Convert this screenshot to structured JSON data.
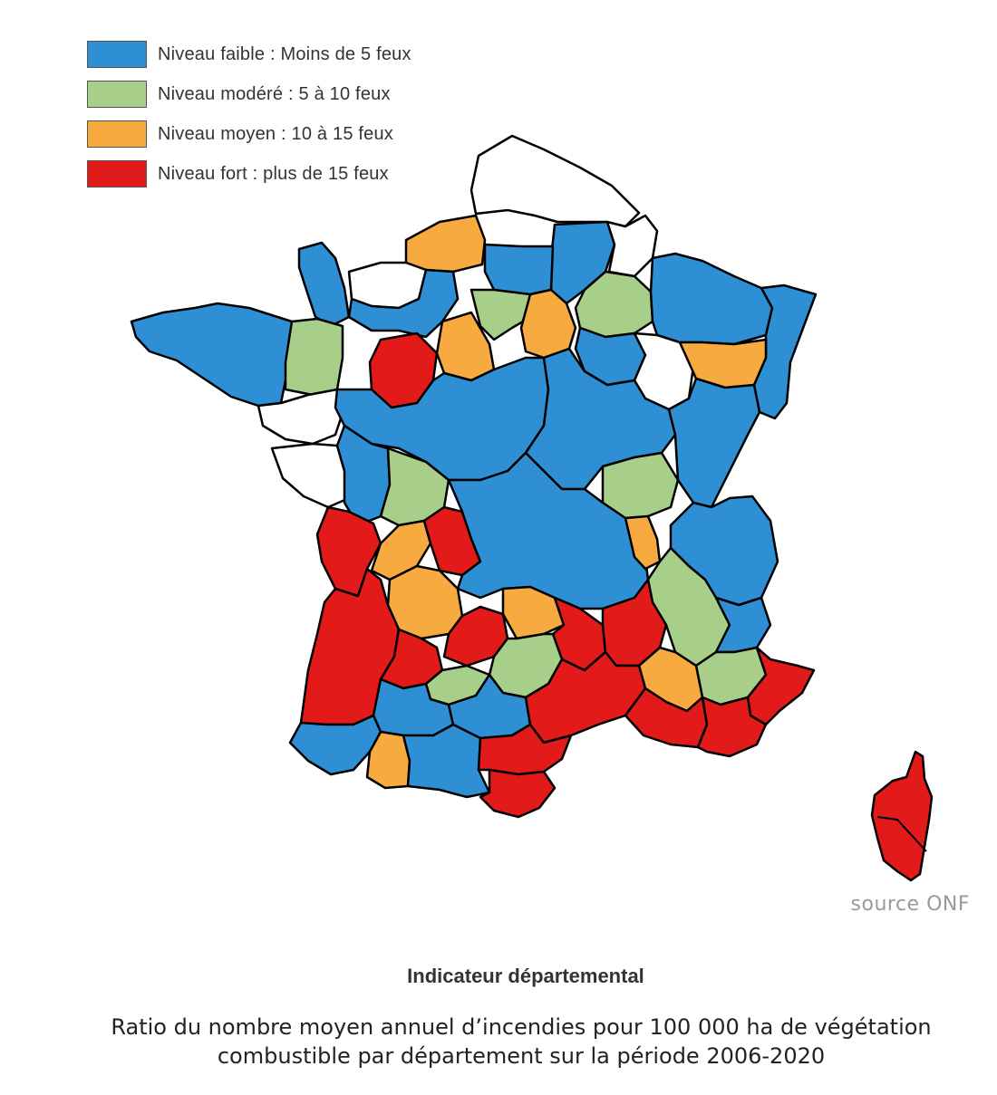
{
  "colors": {
    "faible": "#2f8fd4",
    "modere": "#a8cf8a",
    "moyen": "#f6aa3f",
    "fort": "#e31a1a",
    "nodata": "#ffffff"
  },
  "legend": [
    {
      "key": "faible",
      "label": "Niveau faible : Moins de 5 feux"
    },
    {
      "key": "modere",
      "label": "Niveau modéré : 5 à 10 feux"
    },
    {
      "key": "moyen",
      "label": "Niveau moyen : 10 à 15 feux"
    },
    {
      "key": "fort",
      "label": "Niveau fort : plus de 15 feux"
    }
  ],
  "map": {
    "regions": [
      {
        "name": "nord-pas-de-calais",
        "level": "nodata"
      },
      {
        "name": "somme",
        "level": "moyen"
      },
      {
        "name": "aisne",
        "level": "faible"
      },
      {
        "name": "ardennes",
        "level": "nodata"
      },
      {
        "name": "oise",
        "level": "faible"
      },
      {
        "name": "seine-maritime",
        "level": "nodata"
      },
      {
        "name": "manche",
        "level": "faible"
      },
      {
        "name": "calvados-orne",
        "level": "faible"
      },
      {
        "name": "marne",
        "level": "modere"
      },
      {
        "name": "lorraine",
        "level": "faible"
      },
      {
        "name": "alsace",
        "level": "faible"
      },
      {
        "name": "bretagne",
        "level": "faible"
      },
      {
        "name": "mayenne",
        "level": "modere"
      },
      {
        "name": "sarthe",
        "level": "fort"
      },
      {
        "name": "eure-et-loir",
        "level": "moyen"
      },
      {
        "name": "ile-de-france",
        "level": "modere"
      },
      {
        "name": "seine-et-marne",
        "level": "moyen"
      },
      {
        "name": "aube",
        "level": "faible"
      },
      {
        "name": "haute-marne",
        "level": "nodata"
      },
      {
        "name": "haute-saone",
        "level": "moyen"
      },
      {
        "name": "loire-atlantique",
        "level": "nodata"
      },
      {
        "name": "vendee",
        "level": "nodata"
      },
      {
        "name": "centre",
        "level": "faible"
      },
      {
        "name": "bourgogne",
        "level": "faible"
      },
      {
        "name": "franche-comte",
        "level": "faible"
      },
      {
        "name": "deux-sevres",
        "level": "faible"
      },
      {
        "name": "vienne",
        "level": "modere"
      },
      {
        "name": "saone-et-loire",
        "level": "modere"
      },
      {
        "name": "charente-maritime",
        "level": "fort"
      },
      {
        "name": "charente",
        "level": "moyen"
      },
      {
        "name": "haute-vienne",
        "level": "fort"
      },
      {
        "name": "auvergne",
        "level": "faible"
      },
      {
        "name": "rhone",
        "level": "moyen"
      },
      {
        "name": "savoie",
        "level": "faible"
      },
      {
        "name": "dordogne",
        "level": "moyen"
      },
      {
        "name": "isere",
        "level": "modere"
      },
      {
        "name": "gironde-landes",
        "level": "fort"
      },
      {
        "name": "lot-et-garonne",
        "level": "fort"
      },
      {
        "name": "lot",
        "level": "fort"
      },
      {
        "name": "cantal",
        "level": "moyen"
      },
      {
        "name": "ardeche",
        "level": "fort"
      },
      {
        "name": "drome",
        "level": "fort"
      },
      {
        "name": "aveyron",
        "level": "modere"
      },
      {
        "name": "hautes-alpes",
        "level": "faible"
      },
      {
        "name": "drome-sud",
        "level": "modere"
      },
      {
        "name": "tarn-et-garonne",
        "level": "modere"
      },
      {
        "name": "gers",
        "level": "faible"
      },
      {
        "name": "tarn",
        "level": "faible"
      },
      {
        "name": "vaucluse",
        "level": "moyen"
      },
      {
        "name": "alpes-de-haute-provence",
        "level": "modere"
      },
      {
        "name": "alpes-maritimes",
        "level": "fort"
      },
      {
        "name": "gard-herault",
        "level": "fort"
      },
      {
        "name": "bouches-du-rhone",
        "level": "fort"
      },
      {
        "name": "var",
        "level": "fort"
      },
      {
        "name": "pyrenees-atlantiques",
        "level": "faible"
      },
      {
        "name": "hautes-pyrenees",
        "level": "moyen"
      },
      {
        "name": "haute-garonne-ariege",
        "level": "faible"
      },
      {
        "name": "aude",
        "level": "fort"
      },
      {
        "name": "pyrenees-orientales",
        "level": "fort"
      },
      {
        "name": "corse",
        "level": "fort"
      }
    ]
  },
  "source": "source ONF",
  "title": "Indicateur départemental",
  "caption_line1": "Ratio du nombre moyen annuel d’incendies pour 100 000 ha de végétation",
  "caption_line2": "combustible par département sur la période 2006-2020"
}
